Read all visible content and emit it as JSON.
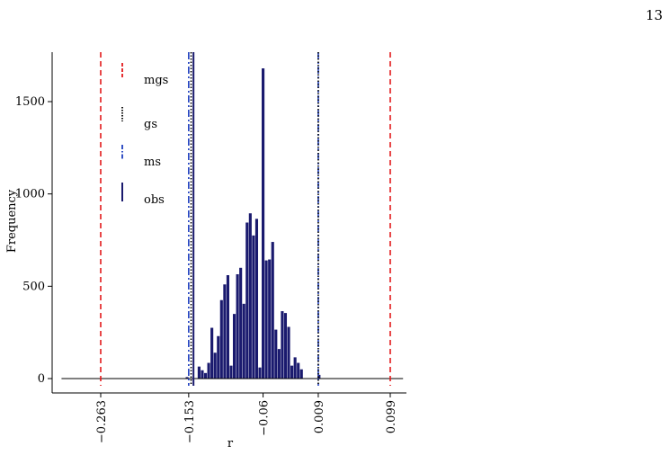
{
  "page": {
    "number": "13"
  },
  "chart_data": {
    "type": "bar",
    "subtype": "histogram",
    "xlabel": "r",
    "ylabel": "Frequency",
    "xlim": [
      -0.33,
      0.14
    ],
    "ylim": [
      0,
      1750
    ],
    "xtick_values": [
      -0.263,
      -0.153,
      -0.06,
      0.009,
      0.099
    ],
    "xtick_labels": [
      "−0.263",
      "−0.153",
      "−0.06",
      "0.009",
      "0.099"
    ],
    "ytick_values": [
      0,
      500,
      1000,
      1500
    ],
    "ytick_labels": [
      "0",
      "500",
      "1000",
      "1500"
    ],
    "bar_color": "#1a1a6e",
    "bin_width": 0.0035,
    "bins": [
      {
        "x": -0.155,
        "count": 8
      },
      {
        "x": -0.14,
        "count": 65
      },
      {
        "x": -0.136,
        "count": 45
      },
      {
        "x": -0.132,
        "count": 30
      },
      {
        "x": -0.128,
        "count": 85
      },
      {
        "x": -0.124,
        "count": 275
      },
      {
        "x": -0.12,
        "count": 140
      },
      {
        "x": -0.116,
        "count": 230
      },
      {
        "x": -0.112,
        "count": 425
      },
      {
        "x": -0.108,
        "count": 510
      },
      {
        "x": -0.104,
        "count": 560
      },
      {
        "x": -0.1,
        "count": 70
      },
      {
        "x": -0.096,
        "count": 350
      },
      {
        "x": -0.092,
        "count": 565
      },
      {
        "x": -0.088,
        "count": 600
      },
      {
        "x": -0.084,
        "count": 405
      },
      {
        "x": -0.08,
        "count": 845
      },
      {
        "x": -0.076,
        "count": 895
      },
      {
        "x": -0.072,
        "count": 775
      },
      {
        "x": -0.068,
        "count": 865
      },
      {
        "x": -0.064,
        "count": 60
      },
      {
        "x": -0.06,
        "count": 1680
      },
      {
        "x": -0.056,
        "count": 640
      },
      {
        "x": -0.052,
        "count": 645
      },
      {
        "x": -0.048,
        "count": 740
      },
      {
        "x": -0.044,
        "count": 265
      },
      {
        "x": -0.04,
        "count": 160
      },
      {
        "x": -0.036,
        "count": 365
      },
      {
        "x": -0.032,
        "count": 355
      },
      {
        "x": -0.028,
        "count": 280
      },
      {
        "x": -0.024,
        "count": 70
      },
      {
        "x": -0.02,
        "count": 115
      },
      {
        "x": -0.016,
        "count": 85
      },
      {
        "x": -0.012,
        "count": 50
      },
      {
        "x": 0.01,
        "count": 20
      }
    ],
    "baseline_range": [
      -0.312,
      0.115
    ],
    "reference_lines": [
      {
        "name": "mgs",
        "x": -0.263,
        "color": "#e31a1c",
        "style": "dashed"
      },
      {
        "name": "mgs",
        "x": 0.099,
        "color": "#e31a1c",
        "style": "dashed"
      },
      {
        "name": "ms",
        "x": -0.153,
        "color": "#1f3fbf",
        "style": "dashdot"
      },
      {
        "name": "ms",
        "x": 0.009,
        "color": "#1f3fbf",
        "style": "dashdot"
      },
      {
        "name": "gs",
        "x": -0.15,
        "color": "#000000",
        "style": "dotted"
      },
      {
        "name": "gs",
        "x": 0.009,
        "color": "#000000",
        "style": "dotted"
      },
      {
        "name": "obs",
        "x": -0.147,
        "color": "#1a1a6e",
        "style": "solid"
      }
    ],
    "legend": {
      "placement": "top-left",
      "entries": [
        {
          "label": "mgs",
          "color": "#e31a1c",
          "style": "dashed"
        },
        {
          "label": "gs",
          "color": "#000000",
          "style": "dotted"
        },
        {
          "label": "ms",
          "color": "#1f3fbf",
          "style": "dashdot"
        },
        {
          "label": "obs",
          "color": "#1a1a6e",
          "style": "solid"
        }
      ]
    }
  }
}
